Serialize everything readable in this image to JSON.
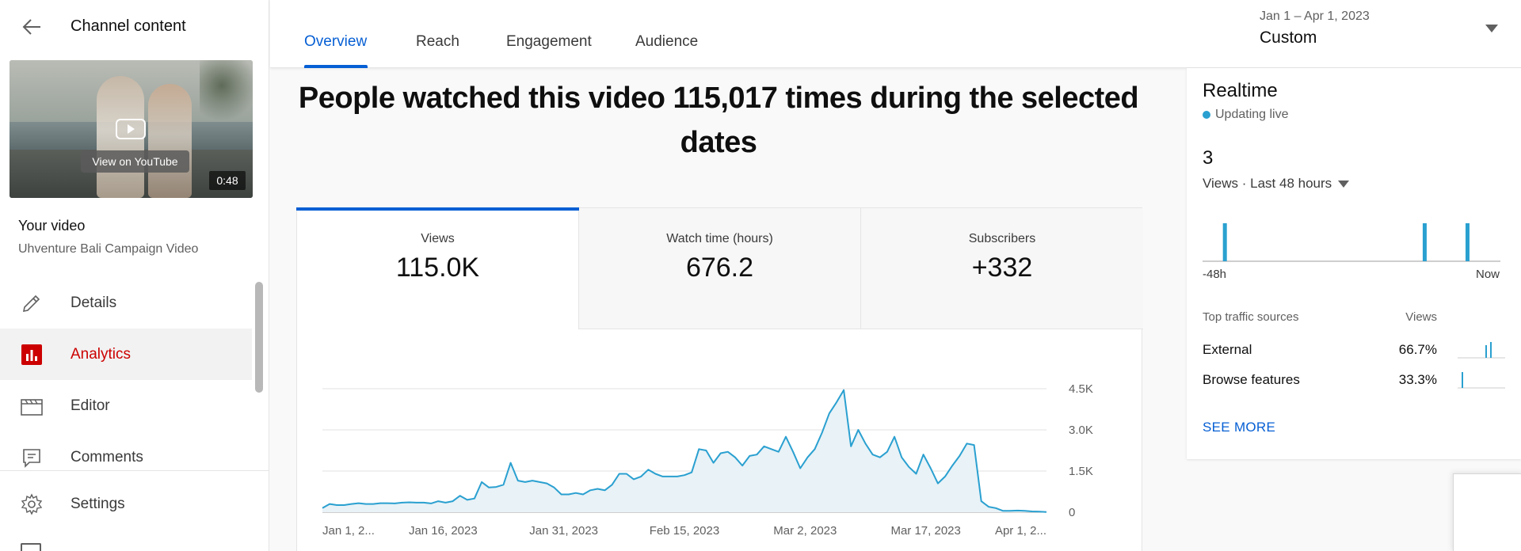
{
  "sidebar": {
    "title": "Channel content",
    "thumbnail": {
      "cta": "View on YouTube",
      "duration": "0:48"
    },
    "your_video_label": "Your video",
    "video_title": "Uhventure Bali Campaign Video",
    "items": [
      {
        "label": "Details",
        "icon": "pencil-icon",
        "active": false
      },
      {
        "label": "Analytics",
        "icon": "analytics-icon",
        "active": true
      },
      {
        "label": "Editor",
        "icon": "film-icon",
        "active": false
      },
      {
        "label": "Comments",
        "icon": "comment-icon",
        "active": false
      }
    ],
    "settings_label": "Settings"
  },
  "header": {
    "tabs": [
      {
        "label": "Overview",
        "active": true
      },
      {
        "label": "Reach",
        "active": false
      },
      {
        "label": "Engagement",
        "active": false
      },
      {
        "label": "Audience",
        "active": false
      }
    ],
    "date_range": "Jan 1 – Apr 1, 2023",
    "date_preset": "Custom"
  },
  "main": {
    "headline": "People watched this video 115,017 times during the selected dates",
    "metrics": [
      {
        "label": "Views",
        "value": "115.0K",
        "active": true
      },
      {
        "label": "Watch time (hours)",
        "value": "676.2",
        "active": false
      },
      {
        "label": "Subscribers",
        "value": "+332",
        "active": false
      }
    ]
  },
  "chart_data": {
    "type": "area",
    "x_tick_labels": [
      "Jan 1, 2...",
      "Jan 16, 2023",
      "Jan 31, 2023",
      "Feb 15, 2023",
      "Mar 2, 2023",
      "Mar 17, 2023",
      "Apr 1, 2..."
    ],
    "y_tick_labels": [
      "4.5K",
      "3.0K",
      "1.5K",
      "0"
    ],
    "ylim": [
      0,
      4500
    ],
    "xlim": [
      0,
      90
    ],
    "grid": true,
    "color": "#2aa0d0",
    "series": [
      {
        "values": [
          150,
          300,
          260,
          260,
          300,
          330,
          300,
          300,
          330,
          330,
          320,
          350,
          360,
          350,
          350,
          320,
          400,
          350,
          400,
          600,
          450,
          500,
          1100,
          900,
          920,
          1000,
          1800,
          1150,
          1100,
          1150,
          1100,
          1050,
          900,
          650,
          650,
          700,
          650,
          800,
          850,
          800,
          1000,
          1400,
          1400,
          1200,
          1300,
          1550,
          1400,
          1300,
          1300,
          1300,
          1350,
          1450,
          2300,
          2250,
          1800,
          2150,
          2200,
          2000,
          1700,
          2050,
          2100,
          2400,
          2300,
          2200,
          2750,
          2200,
          1600,
          2000,
          2300,
          2900,
          3600,
          4000,
          4450,
          2400,
          3000,
          2500,
          2100,
          2000,
          2200,
          2750,
          2000,
          1650,
          1400,
          2100,
          1600,
          1050,
          1300,
          1700,
          2050,
          2500,
          2450,
          400,
          200,
          150,
          50,
          50,
          60,
          50,
          30,
          20,
          10
        ]
      }
    ]
  },
  "realtime": {
    "title": "Realtime",
    "status": "Updating live",
    "count": "3",
    "period": "Views · Last 48 hours",
    "axis_left": "-48h",
    "axis_right": "Now",
    "bars": [
      {
        "position_hours_ago": 44.4,
        "views": 1
      },
      {
        "position_hours_ago": 12.2,
        "views": 1
      },
      {
        "position_hours_ago": 5.3,
        "views": 1
      }
    ],
    "sources_header": "Top traffic sources",
    "views_header": "Views",
    "sources": [
      {
        "name": "External",
        "value": "66.7%"
      },
      {
        "name": "Browse features",
        "value": "33.3%"
      }
    ],
    "see_more": "SEE MORE"
  }
}
